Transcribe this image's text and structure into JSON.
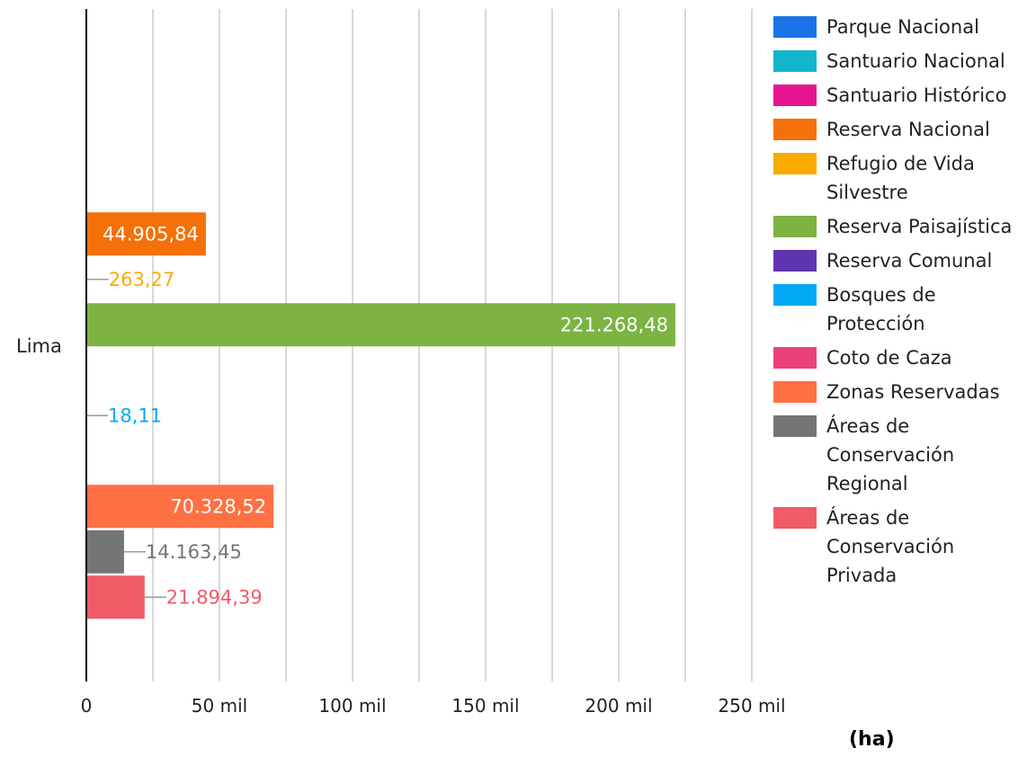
{
  "chart_data": {
    "type": "bar",
    "orientation": "horizontal",
    "categories": [
      "Lima"
    ],
    "unit_label": "(ha)",
    "xlim": [
      0,
      250000
    ],
    "xticks": [
      0,
      50000,
      100000,
      150000,
      200000,
      250000
    ],
    "xtick_labels": [
      "0",
      "50 mil",
      "100 mil",
      "150 mil",
      "200 mil",
      "250 mil"
    ],
    "grid": true,
    "legend_position": "right",
    "series": [
      {
        "name": "Parque Nacional",
        "color": "#1a73e8",
        "values": [
          0
        ],
        "label": ""
      },
      {
        "name": "Santuario Nacional",
        "color": "#12b5cb",
        "values": [
          0
        ],
        "label": ""
      },
      {
        "name": "Santuario Histórico",
        "color": "#e8148f",
        "values": [
          0
        ],
        "label": ""
      },
      {
        "name": "Reserva Nacional",
        "color": "#f57009",
        "values": [
          44905.84
        ],
        "label": "44.905,84"
      },
      {
        "name": "Refugio de Vida Silvestre",
        "color": "#f9ab00",
        "values": [
          263.27
        ],
        "label": "263,27"
      },
      {
        "name": "Reserva Paisajística",
        "color": "#7cb342",
        "values": [
          221268.48
        ],
        "label": "221.268,48"
      },
      {
        "name": "Reserva Comunal",
        "color": "#5e35b1",
        "values": [
          0
        ],
        "label": ""
      },
      {
        "name": "Bosques de Protección",
        "color": "#03a9f4",
        "values": [
          18.11
        ],
        "label": "18,11"
      },
      {
        "name": "Coto de Caza",
        "color": "#ec407a",
        "values": [
          0
        ],
        "label": ""
      },
      {
        "name": "Zonas Reservadas",
        "color": "#ff7043",
        "values": [
          70328.52
        ],
        "label": "70.328,52"
      },
      {
        "name": "Áreas de Conservación Regional",
        "color": "#757575",
        "values": [
          14163.45
        ],
        "label": "14.163,45"
      },
      {
        "name": "Áreas de Conservación Privada",
        "color": "#ef5b67",
        "values": [
          21894.39
        ],
        "label": "21.894,39"
      }
    ]
  }
}
